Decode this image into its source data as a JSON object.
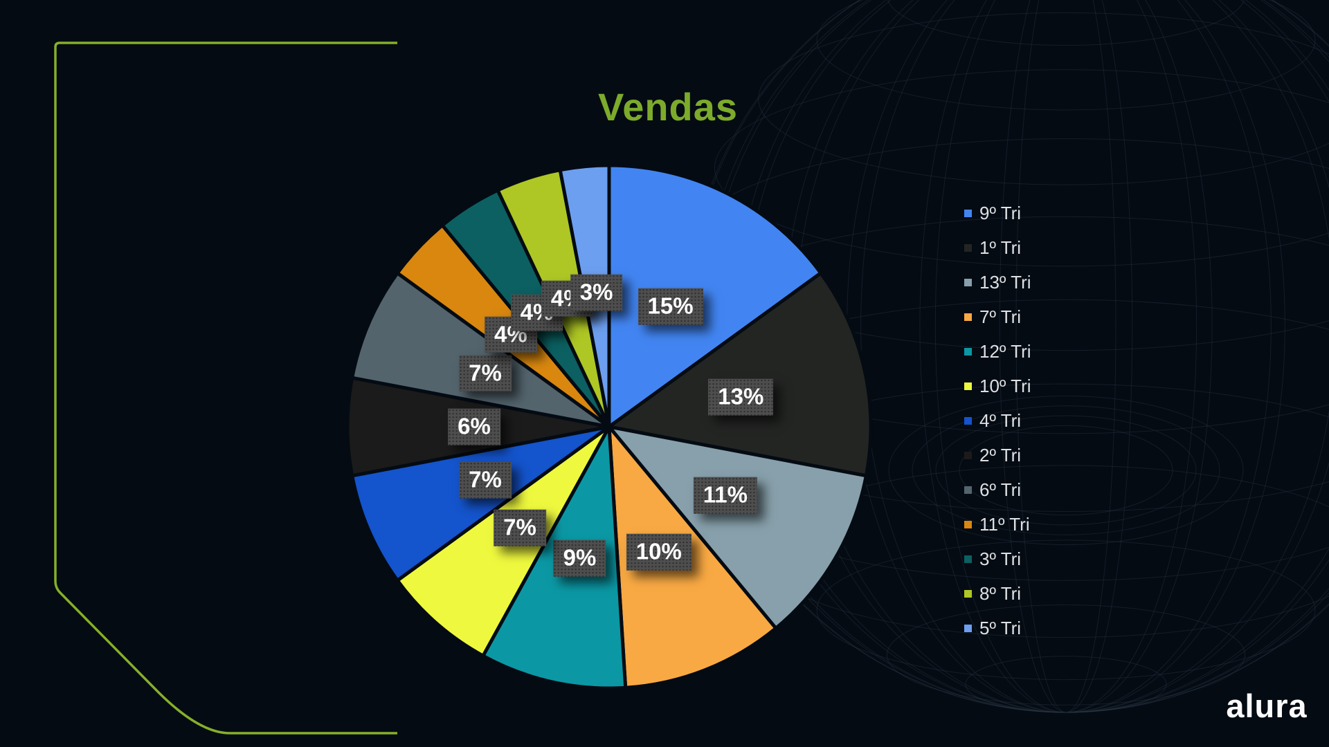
{
  "title": "Vendas",
  "brand": "alura",
  "colors": {
    "background": "#050b13",
    "frame_green": "#85b02a",
    "title_green": "#7cab2b",
    "wireframe": "#2a3744",
    "label_box": "#4e4e4e",
    "label_text": "#ffffff",
    "legend_text": "#dde1e4",
    "slice_gap": "#050b13"
  },
  "chart_data": {
    "type": "pie",
    "title": "Vendas",
    "legend_position": "right",
    "start_angle_deg": 0,
    "direction": "clockwise",
    "data_labels": "percent",
    "slices": [
      {
        "label": "9º Tri",
        "value": 15,
        "pct_label": "15%",
        "color": "#4285f2"
      },
      {
        "label": "1º Tri",
        "value": 13,
        "pct_label": "13%",
        "color": "#232523"
      },
      {
        "label": "13º Tri",
        "value": 11,
        "pct_label": "11%",
        "color": "#87a0ab"
      },
      {
        "label": "7º Tri",
        "value": 10,
        "pct_label": "10%",
        "color": "#f8a943"
      },
      {
        "label": "12º Tri",
        "value": 9,
        "pct_label": "9%",
        "color": "#0b98a4"
      },
      {
        "label": "10º Tri",
        "value": 7,
        "pct_label": "7%",
        "color": "#eef83e"
      },
      {
        "label": "4º Tri",
        "value": 7,
        "pct_label": "7%",
        "color": "#1454cc"
      },
      {
        "label": "2º Tri",
        "value": 6,
        "pct_label": "6%",
        "color": "#1a1b1a"
      },
      {
        "label": "6º Tri",
        "value": 7,
        "pct_label": "7%",
        "color": "#53646d"
      },
      {
        "label": "11º Tri",
        "value": 4,
        "pct_label": "4%",
        "color": "#d9870f"
      },
      {
        "label": "3º Tri",
        "value": 4,
        "pct_label": "4%",
        "color": "#0c6061"
      },
      {
        "label": "8º Tri",
        "value": 4,
        "pct_label": "4%",
        "color": "#aec724"
      },
      {
        "label": "5º Tri",
        "value": 3,
        "pct_label": "3%",
        "color": "#6d9ff0"
      }
    ]
  }
}
